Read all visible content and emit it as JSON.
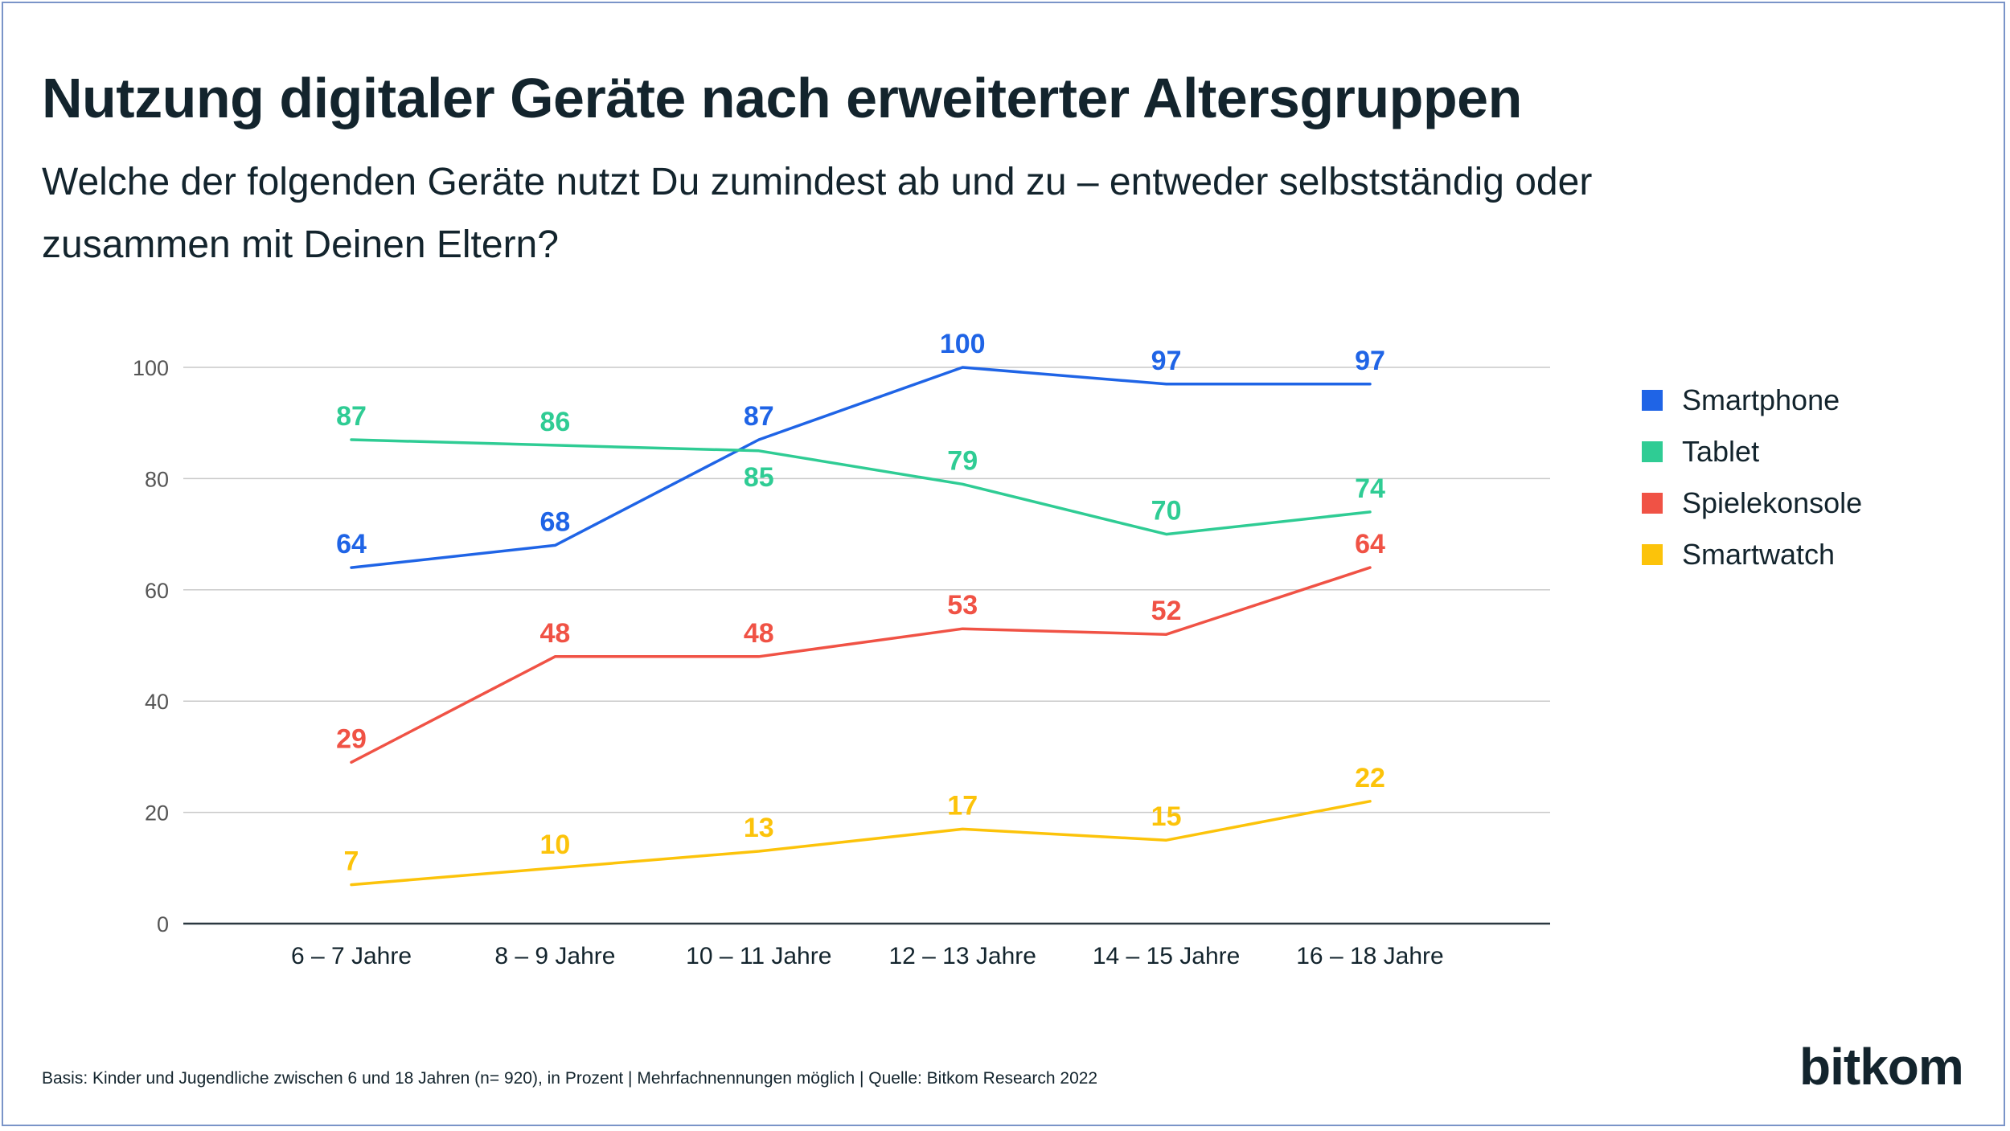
{
  "header": {
    "title": "Nutzung digitaler Geräte nach erweiterter Altersgruppen",
    "subtitle": "Welche der folgenden Geräte nutzt Du zumindest ab und zu – entweder selbstständig oder zusammen mit Deinen Eltern?"
  },
  "chart_data": {
    "type": "line",
    "title": "",
    "xlabel": "",
    "ylabel": "",
    "ylim": [
      0,
      100
    ],
    "yticks": [
      0,
      20,
      40,
      60,
      80,
      100
    ],
    "grid": true,
    "legend_position": "right",
    "categories": [
      "6 – 7 Jahre",
      "8 – 9 Jahre",
      "10 – 11 Jahre",
      "12 – 13 Jahre",
      "14 – 15 Jahre",
      "16 – 18 Jahre"
    ],
    "series": [
      {
        "name": "Smartphone",
        "color": "#1f64e6",
        "values": [
          64,
          68,
          87,
          100,
          97,
          97
        ]
      },
      {
        "name": "Tablet",
        "color": "#2fcc94",
        "values": [
          87,
          86,
          85,
          79,
          70,
          74
        ]
      },
      {
        "name": "Spielekonsole",
        "color": "#f05245",
        "values": [
          29,
          48,
          48,
          53,
          52,
          64
        ]
      },
      {
        "name": "Smartwatch",
        "color": "#fcc30a",
        "values": [
          7,
          10,
          13,
          17,
          15,
          22
        ]
      }
    ]
  },
  "footer": {
    "note": "Basis: Kinder und Jugendliche zwischen 6 und 18 Jahren (n= 920), in Prozent | Mehrfachnennungen möglich | Quelle: Bitkom Research 2022",
    "logo": "bitkom"
  }
}
